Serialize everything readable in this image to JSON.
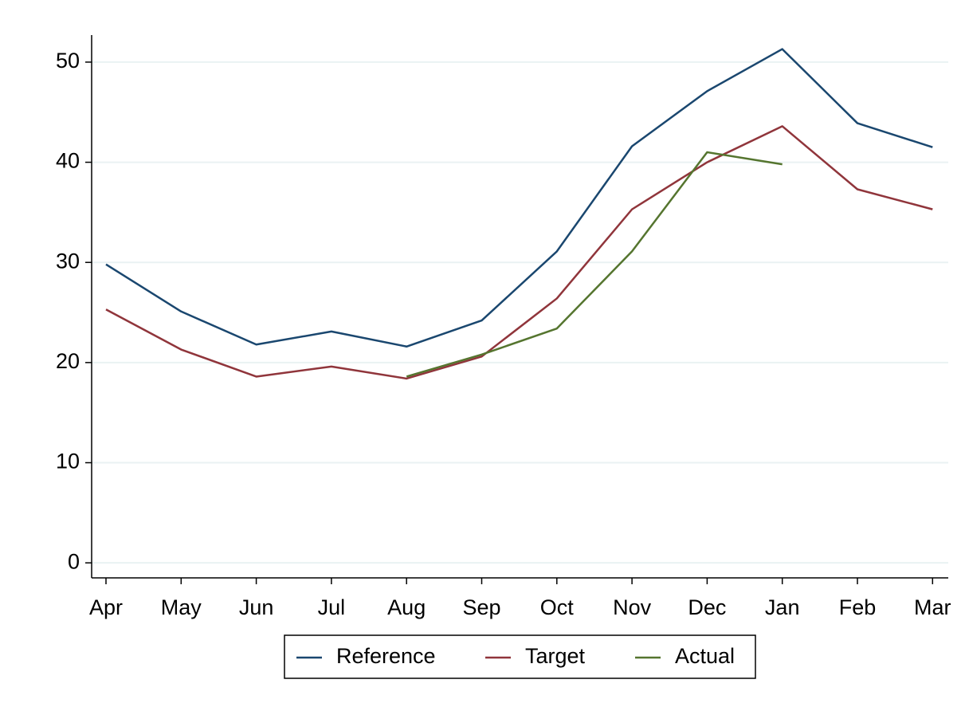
{
  "chart_data": {
    "type": "line",
    "categories": [
      "Apr",
      "May",
      "Jun",
      "Jul",
      "Aug",
      "Sep",
      "Oct",
      "Nov",
      "Dec",
      "Jan",
      "Feb",
      "Mar"
    ],
    "series": [
      {
        "name": "Reference",
        "color": "#1a476f",
        "values": [
          29.8,
          25.1,
          21.8,
          23.1,
          21.6,
          24.2,
          31.1,
          41.6,
          47.1,
          51.3,
          43.9,
          41.5
        ]
      },
      {
        "name": "Target",
        "color": "#90353b",
        "values": [
          25.3,
          21.3,
          18.6,
          19.6,
          18.4,
          20.6,
          26.4,
          35.3,
          40.0,
          43.6,
          37.3,
          35.3
        ]
      },
      {
        "name": "Actual",
        "color": "#55752f",
        "values": [
          null,
          null,
          null,
          null,
          18.6,
          20.8,
          23.4,
          31.1,
          41.0,
          39.8,
          null,
          null
        ]
      }
    ],
    "ylim": [
      -1.5,
      52.7
    ],
    "yticks": [
      0,
      10,
      20,
      30,
      40,
      50
    ],
    "grid": true,
    "legend": "bottom"
  }
}
